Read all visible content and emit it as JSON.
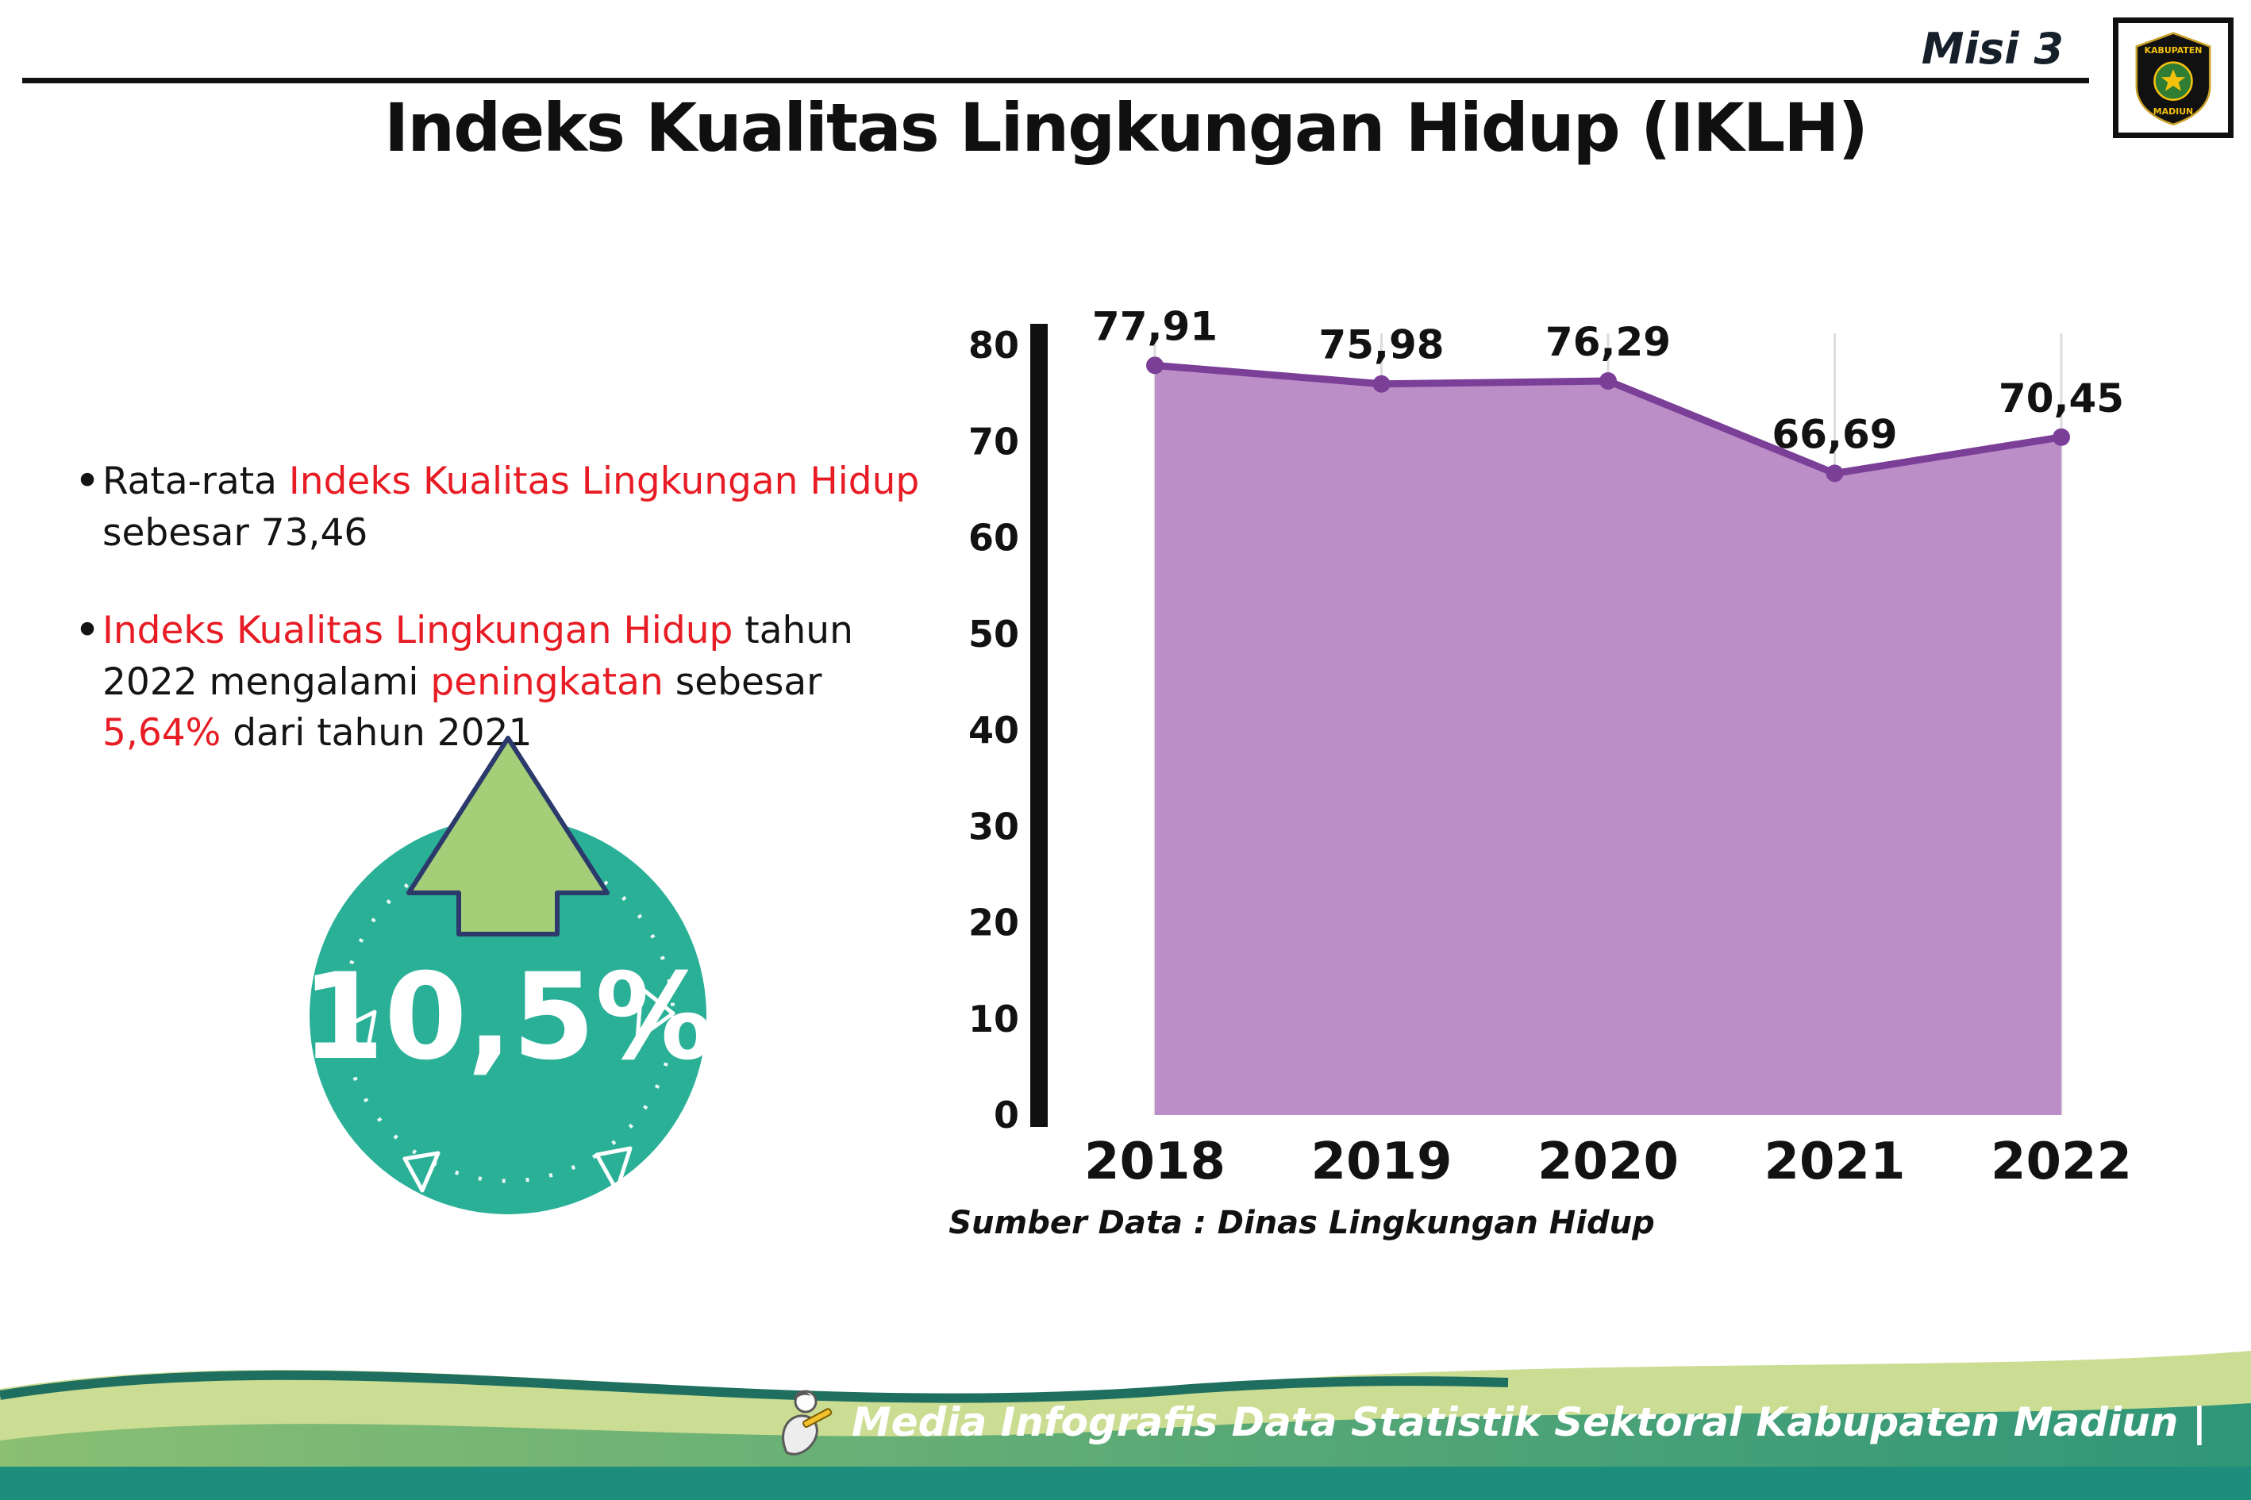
{
  "header": {
    "misi_label": "Misi 3",
    "title": "Indeks Kualitas Lingkungan Hidup (IKLH)",
    "logo": {
      "top_text": "KABUPATEN",
      "bottom_text": "MADIUN"
    }
  },
  "bullets": {
    "b1": {
      "p1": "Rata-rata ",
      "p2": "Indeks Kualitas Lingkungan Hidup",
      "p3": " sebesar 73,46"
    },
    "b2": {
      "p1": "Indeks Kualitas Lingkungan Hidup",
      "p2": " tahun 2022 mengalami ",
      "p3": "peningkatan",
      "p4": " sebesar ",
      "p5": "5,64%",
      "p6": " dari tahun 2021"
    }
  },
  "badge": {
    "value": "10,5%"
  },
  "chart_data": {
    "type": "area",
    "categories": [
      "2018",
      "2019",
      "2020",
      "2021",
      "2022"
    ],
    "values": [
      77.91,
      75.98,
      76.29,
      66.69,
      70.45
    ],
    "value_labels": [
      "77,91",
      "75,98",
      "76,29",
      "66,69",
      "70,45"
    ],
    "title": "Indeks Kualitas Lingkungan Hidup (IKLH)",
    "xlabel": "",
    "ylabel": "",
    "ylim": [
      0,
      80
    ],
    "yticks": [
      0,
      10,
      20,
      30,
      40,
      50,
      60,
      70,
      80
    ],
    "grid": "vertical-light",
    "legend": "none",
    "source_note": "Sumber Data : Dinas Lingkungan Hidup"
  },
  "footer": {
    "credit": "Media Infografis Data Statistik Sektoral Kabupaten Madiun |"
  },
  "colors": {
    "area_fill": "#bb8ec8",
    "trend_line": "#7b3f98",
    "accent_red": "#e71c24",
    "badge_teal": "#2bb098",
    "arrow_green": "#a5ce78",
    "footer_light_green": "#cbdc93",
    "footer_dark_teal": "#1f6f60",
    "footer_main_green_left": "#8abf74",
    "footer_main_green_right": "#2f9678",
    "footer_strip": "#1d8e7b"
  }
}
